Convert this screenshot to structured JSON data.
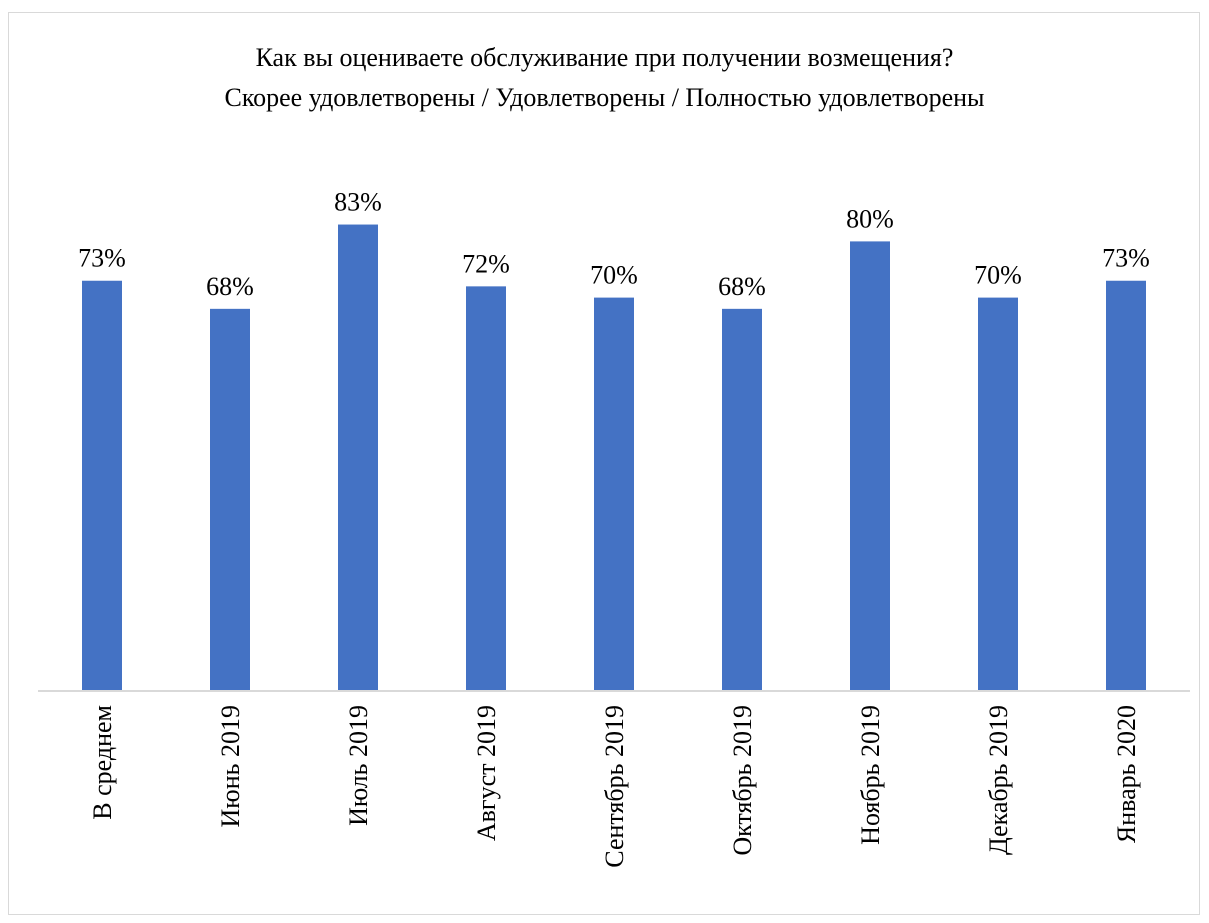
{
  "chart_data": {
    "type": "bar",
    "title": "Как вы оцениваете обслуживание при получении возмещения?",
    "subtitle": "Скорее удовлетворены / Удовлетворены / Полностью удовлетворены",
    "categories": [
      "В среднем",
      "Июнь 2019",
      "Июль 2019",
      "Август 2019",
      "Сентябрь 2019",
      "Октябрь 2019",
      "Ноябрь 2019",
      "Декабрь 2019",
      "Январь 2020"
    ],
    "values": [
      73,
      68,
      83,
      72,
      70,
      68,
      80,
      70,
      73
    ],
    "data_labels": [
      "73%",
      "68%",
      "83%",
      "72%",
      "70%",
      "68%",
      "80%",
      "70%",
      "73%"
    ],
    "unit": "%",
    "bar_color": "#4472C4",
    "axis_color": "#d9d9d9",
    "ylim": [
      0,
      100
    ],
    "grid": false,
    "legend": "none"
  }
}
